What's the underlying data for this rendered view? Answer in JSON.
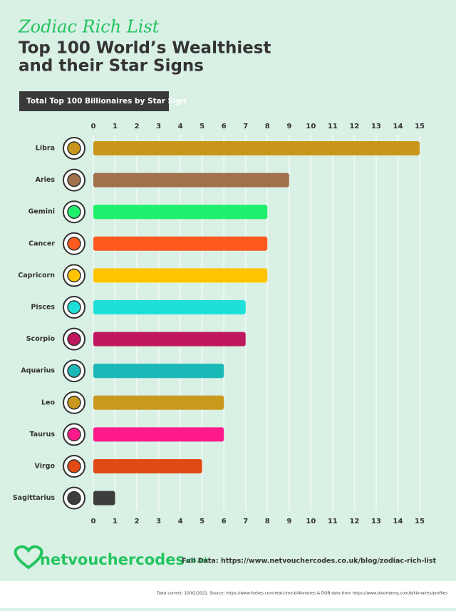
{
  "kicker": "Zodiac Rich List",
  "footer": {
    "logo": "netvouchercodes",
    "logo_suffix": ".co.uk",
    "full_data": "Full Data: https://www.netvouchercodes.co.uk/blog/zodiac-rich-list",
    "source": "Data correct: 10/02/2021. Source: https://www.forbes.com/real-time-billionaires & DOB data from https://www.bloomberg.com/billionaires/profiles"
  },
  "chart_data": {
    "type": "bar",
    "orientation": "horizontal",
    "title": [
      "Top 100 World’s Wealthiest",
      "and their Star Signs"
    ],
    "subtitle": "Total Top 100 Billionaires by Star Sign",
    "categories": [
      "Libra",
      "Aries",
      "Gemini",
      "Cancer",
      "Capricorn",
      "Pisces",
      "Scorpio",
      "Aquarius",
      "Leo",
      "Taurus",
      "Virgo",
      "Sagittarius"
    ],
    "values": [
      15,
      9,
      8,
      8,
      8,
      7,
      7,
      6,
      6,
      6,
      5,
      1
    ],
    "colors": [
      "#c8961a",
      "#a0714a",
      "#1ef06e",
      "#ff5a1e",
      "#ffc300",
      "#1ee0d8",
      "#c0185e",
      "#1bb8b8",
      "#c9991e",
      "#ff1a8c",
      "#e04a14",
      "#3d3d3d"
    ],
    "xlim": [
      0,
      15
    ],
    "xticks": [
      0,
      1,
      2,
      3,
      4,
      5,
      6,
      7,
      8,
      9,
      10,
      11,
      12,
      13,
      14,
      15
    ],
    "grid": true
  }
}
